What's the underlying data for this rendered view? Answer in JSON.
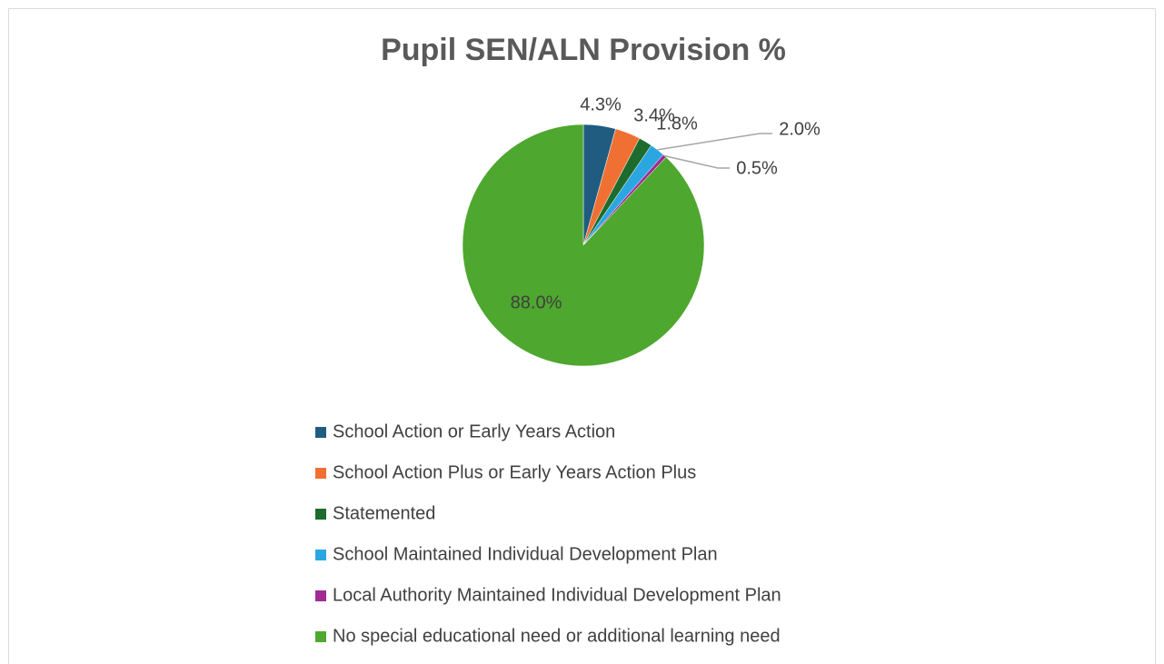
{
  "chart_data": {
    "type": "pie",
    "title": "Pupil SEN/ALN Provision %",
    "categories": [
      "School Action or Early Years Action",
      "School Action Plus or Early Years Action Plus",
      "Statemented",
      "School Maintained Individual Development Plan",
      "Local Authority Maintained Individual Development Plan",
      "No special educational need or additional learning need"
    ],
    "values": [
      4.3,
      3.4,
      1.8,
      2.0,
      0.5,
      88.0
    ],
    "value_labels": [
      "4.3%",
      "3.4%",
      "1.8%",
      "2.0%",
      "0.5%",
      "88.0%"
    ],
    "colors": [
      "#1f5c80",
      "#f07033",
      "#1e6b2e",
      "#2aa7e0",
      "#a02b93",
      "#4ea72e"
    ],
    "legend": "bottom"
  }
}
